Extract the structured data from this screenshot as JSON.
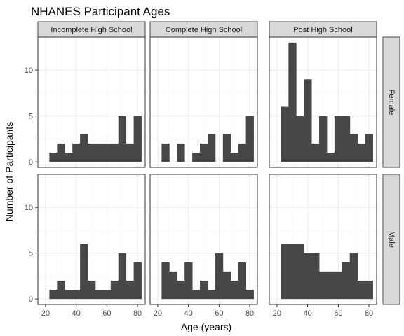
{
  "chart_data": {
    "type": "histogram",
    "title": "NHANES Participant Ages",
    "xlabel": "Age (years)",
    "ylabel": "Number of Participants",
    "col_facets": [
      "Incomplete High School",
      "Complete High School",
      "Post High School"
    ],
    "row_facets": [
      "Female",
      "Male"
    ],
    "xlim": [
      15,
      85
    ],
    "ylim": [
      -0.6,
      13.6
    ],
    "x_ticks": [
      20,
      40,
      60,
      80
    ],
    "y_ticks": [
      0,
      5,
      10
    ],
    "bin_starts": [
      22.5,
      27.5,
      32.5,
      37.5,
      42.5,
      47.5,
      52.5,
      57.5,
      62.5,
      67.5,
      72.5,
      77.5
    ],
    "bin_width": 5,
    "series": [
      {
        "row": "Female",
        "col": "Incomplete High School",
        "counts": [
          1,
          2,
          1,
          2,
          3,
          2,
          2,
          2,
          2,
          5,
          2,
          5
        ]
      },
      {
        "row": "Female",
        "col": "Complete High School",
        "counts": [
          2,
          0,
          2,
          0,
          1,
          2,
          3,
          0,
          3,
          1,
          2,
          5
        ]
      },
      {
        "row": "Female",
        "col": "Post High School",
        "counts": [
          6,
          13,
          5,
          9,
          2,
          5,
          1,
          5,
          5,
          3,
          2,
          3
        ]
      },
      {
        "row": "Male",
        "col": "Incomplete High School",
        "counts": [
          1,
          2,
          1,
          1,
          6,
          2,
          1,
          1,
          2,
          5,
          2,
          4
        ]
      },
      {
        "row": "Male",
        "col": "Complete High School",
        "counts": [
          4,
          3,
          2,
          4,
          1,
          2,
          1,
          5,
          3,
          2,
          4,
          1
        ]
      },
      {
        "row": "Male",
        "col": "Post High School",
        "counts": [
          6,
          6,
          6,
          5,
          5,
          3,
          3,
          3,
          4,
          5,
          2,
          2
        ]
      }
    ]
  },
  "colors": {
    "bar": "#474747",
    "strip_background": "#d9d9d9",
    "panel_border": "#333333",
    "grid": "#ebebeb"
  }
}
